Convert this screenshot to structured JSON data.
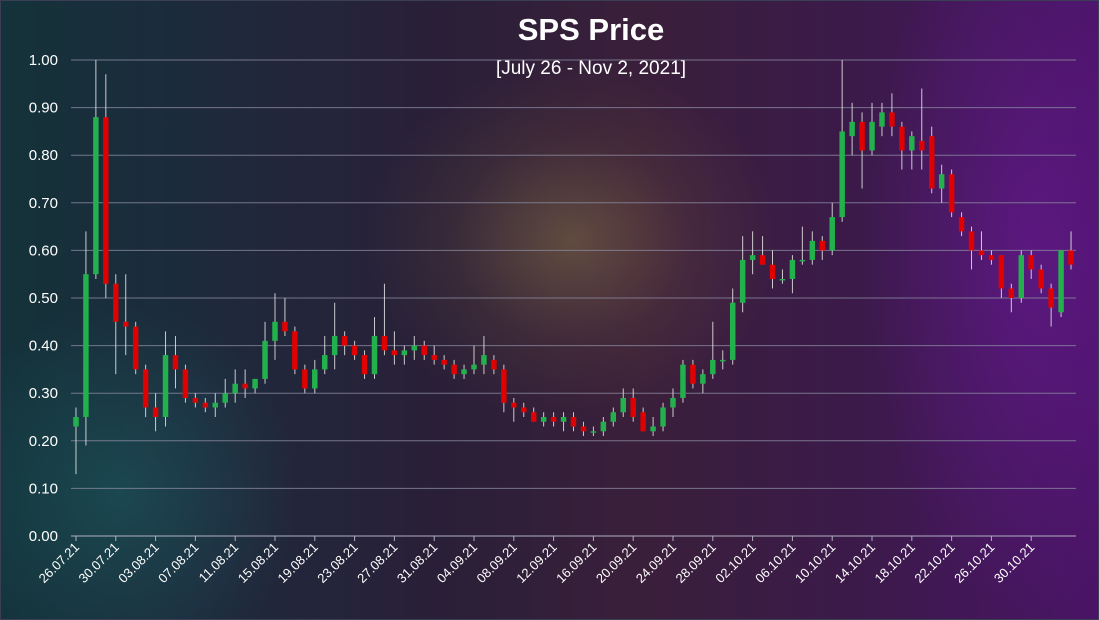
{
  "chart_data": {
    "type": "candlestick",
    "title": "SPS Price",
    "subtitle": "[July 26 - Nov 2, 2021]",
    "xlabel": "",
    "ylabel": "",
    "ylim": [
      0,
      1.0
    ],
    "grid": true,
    "legend": "none",
    "colors": {
      "up": "#22b14c",
      "down": "#e00000",
      "wick": "#e8e8e8",
      "grid": "#8a8aa0"
    },
    "y_ticks": [
      "0.00",
      "0.10",
      "0.20",
      "0.30",
      "0.40",
      "0.50",
      "0.60",
      "0.70",
      "0.80",
      "0.90",
      "1.00"
    ],
    "x_tick_labels": [
      "26.07.21",
      "30.07.21",
      "03.08.21",
      "07.08.21",
      "11.08.21",
      "15.08.21",
      "19.08.21",
      "23.08.21",
      "27.08.21",
      "31.08.21",
      "04.09.21",
      "08.09.21",
      "12.09.21",
      "16.09.21",
      "20.09.21",
      "24.09.21",
      "28.09.21",
      "02.10.21",
      "06.10.21",
      "10.10.21",
      "14.10.21",
      "18.10.21",
      "22.10.21",
      "26.10.21",
      "30.10.21"
    ],
    "candles": [
      {
        "d": "26.07.21",
        "o": 0.23,
        "h": 0.27,
        "l": 0.13,
        "c": 0.25
      },
      {
        "d": "27.07.21",
        "o": 0.25,
        "h": 0.64,
        "l": 0.19,
        "c": 0.55
      },
      {
        "d": "28.07.21",
        "o": 0.55,
        "h": 1.0,
        "l": 0.54,
        "c": 0.88
      },
      {
        "d": "29.07.21",
        "o": 0.88,
        "h": 0.97,
        "l": 0.5,
        "c": 0.53
      },
      {
        "d": "30.07.21",
        "o": 0.53,
        "h": 0.55,
        "l": 0.34,
        "c": 0.45
      },
      {
        "d": "31.07.21",
        "o": 0.45,
        "h": 0.55,
        "l": 0.38,
        "c": 0.44
      },
      {
        "d": "01.08.21",
        "o": 0.44,
        "h": 0.45,
        "l": 0.34,
        "c": 0.35
      },
      {
        "d": "02.08.21",
        "o": 0.35,
        "h": 0.36,
        "l": 0.25,
        "c": 0.27
      },
      {
        "d": "03.08.21",
        "o": 0.27,
        "h": 0.3,
        "l": 0.22,
        "c": 0.25
      },
      {
        "d": "04.08.21",
        "o": 0.25,
        "h": 0.43,
        "l": 0.23,
        "c": 0.38
      },
      {
        "d": "05.08.21",
        "o": 0.38,
        "h": 0.42,
        "l": 0.31,
        "c": 0.35
      },
      {
        "d": "06.08.21",
        "o": 0.35,
        "h": 0.36,
        "l": 0.28,
        "c": 0.29
      },
      {
        "d": "07.08.21",
        "o": 0.29,
        "h": 0.3,
        "l": 0.27,
        "c": 0.28
      },
      {
        "d": "08.08.21",
        "o": 0.28,
        "h": 0.29,
        "l": 0.26,
        "c": 0.27
      },
      {
        "d": "09.08.21",
        "o": 0.27,
        "h": 0.3,
        "l": 0.25,
        "c": 0.28
      },
      {
        "d": "10.08.21",
        "o": 0.28,
        "h": 0.33,
        "l": 0.27,
        "c": 0.3
      },
      {
        "d": "11.08.21",
        "o": 0.3,
        "h": 0.35,
        "l": 0.28,
        "c": 0.32
      },
      {
        "d": "12.08.21",
        "o": 0.32,
        "h": 0.35,
        "l": 0.29,
        "c": 0.31
      },
      {
        "d": "13.08.21",
        "o": 0.31,
        "h": 0.33,
        "l": 0.3,
        "c": 0.33
      },
      {
        "d": "14.08.21",
        "o": 0.33,
        "h": 0.45,
        "l": 0.32,
        "c": 0.41
      },
      {
        "d": "15.08.21",
        "o": 0.41,
        "h": 0.51,
        "l": 0.37,
        "c": 0.45
      },
      {
        "d": "16.08.21",
        "o": 0.45,
        "h": 0.5,
        "l": 0.42,
        "c": 0.43
      },
      {
        "d": "17.08.21",
        "o": 0.43,
        "h": 0.44,
        "l": 0.34,
        "c": 0.35
      },
      {
        "d": "18.08.21",
        "o": 0.35,
        "h": 0.36,
        "l": 0.3,
        "c": 0.31
      },
      {
        "d": "19.08.21",
        "o": 0.31,
        "h": 0.37,
        "l": 0.3,
        "c": 0.35
      },
      {
        "d": "20.08.21",
        "o": 0.35,
        "h": 0.42,
        "l": 0.34,
        "c": 0.38
      },
      {
        "d": "21.08.21",
        "o": 0.38,
        "h": 0.49,
        "l": 0.35,
        "c": 0.42
      },
      {
        "d": "22.08.21",
        "o": 0.42,
        "h": 0.43,
        "l": 0.38,
        "c": 0.4
      },
      {
        "d": "23.08.21",
        "o": 0.4,
        "h": 0.41,
        "l": 0.37,
        "c": 0.38
      },
      {
        "d": "24.08.21",
        "o": 0.38,
        "h": 0.39,
        "l": 0.33,
        "c": 0.34
      },
      {
        "d": "25.08.21",
        "o": 0.34,
        "h": 0.46,
        "l": 0.33,
        "c": 0.42
      },
      {
        "d": "26.08.21",
        "o": 0.42,
        "h": 0.53,
        "l": 0.38,
        "c": 0.39
      },
      {
        "d": "27.08.21",
        "o": 0.39,
        "h": 0.43,
        "l": 0.36,
        "c": 0.38
      },
      {
        "d": "28.08.21",
        "o": 0.38,
        "h": 0.4,
        "l": 0.36,
        "c": 0.39
      },
      {
        "d": "29.08.21",
        "o": 0.39,
        "h": 0.42,
        "l": 0.37,
        "c": 0.4
      },
      {
        "d": "30.08.21",
        "o": 0.4,
        "h": 0.41,
        "l": 0.37,
        "c": 0.38
      },
      {
        "d": "31.08.21",
        "o": 0.38,
        "h": 0.4,
        "l": 0.36,
        "c": 0.37
      },
      {
        "d": "01.09.21",
        "o": 0.37,
        "h": 0.38,
        "l": 0.35,
        "c": 0.36
      },
      {
        "d": "02.09.21",
        "o": 0.36,
        "h": 0.37,
        "l": 0.33,
        "c": 0.34
      },
      {
        "d": "03.09.21",
        "o": 0.34,
        "h": 0.36,
        "l": 0.33,
        "c": 0.35
      },
      {
        "d": "04.09.21",
        "o": 0.35,
        "h": 0.4,
        "l": 0.34,
        "c": 0.36
      },
      {
        "d": "05.09.21",
        "o": 0.36,
        "h": 0.42,
        "l": 0.34,
        "c": 0.38
      },
      {
        "d": "06.09.21",
        "o": 0.37,
        "h": 0.38,
        "l": 0.34,
        "c": 0.35
      },
      {
        "d": "07.09.21",
        "o": 0.35,
        "h": 0.36,
        "l": 0.26,
        "c": 0.28
      },
      {
        "d": "08.09.21",
        "o": 0.28,
        "h": 0.29,
        "l": 0.24,
        "c": 0.27
      },
      {
        "d": "09.09.21",
        "o": 0.27,
        "h": 0.28,
        "l": 0.25,
        "c": 0.26
      },
      {
        "d": "10.09.21",
        "o": 0.26,
        "h": 0.27,
        "l": 0.24,
        "c": 0.24
      },
      {
        "d": "11.09.21",
        "o": 0.24,
        "h": 0.26,
        "l": 0.23,
        "c": 0.25
      },
      {
        "d": "12.09.21",
        "o": 0.25,
        "h": 0.26,
        "l": 0.23,
        "c": 0.24
      },
      {
        "d": "13.09.21",
        "o": 0.24,
        "h": 0.26,
        "l": 0.22,
        "c": 0.25
      },
      {
        "d": "14.09.21",
        "o": 0.25,
        "h": 0.26,
        "l": 0.22,
        "c": 0.23
      },
      {
        "d": "15.09.21",
        "o": 0.23,
        "h": 0.24,
        "l": 0.21,
        "c": 0.22
      },
      {
        "d": "16.09.21",
        "o": 0.22,
        "h": 0.23,
        "l": 0.21,
        "c": 0.22
      },
      {
        "d": "17.09.21",
        "o": 0.22,
        "h": 0.25,
        "l": 0.21,
        "c": 0.24
      },
      {
        "d": "18.09.21",
        "o": 0.24,
        "h": 0.27,
        "l": 0.23,
        "c": 0.26
      },
      {
        "d": "19.09.21",
        "o": 0.26,
        "h": 0.31,
        "l": 0.25,
        "c": 0.29
      },
      {
        "d": "20.09.21",
        "o": 0.29,
        "h": 0.31,
        "l": 0.24,
        "c": 0.25
      },
      {
        "d": "21.09.21",
        "o": 0.26,
        "h": 0.27,
        "l": 0.22,
        "c": 0.22
      },
      {
        "d": "22.09.21",
        "o": 0.22,
        "h": 0.25,
        "l": 0.21,
        "c": 0.23
      },
      {
        "d": "23.09.21",
        "o": 0.23,
        "h": 0.28,
        "l": 0.22,
        "c": 0.27
      },
      {
        "d": "24.09.21",
        "o": 0.27,
        "h": 0.31,
        "l": 0.25,
        "c": 0.29
      },
      {
        "d": "25.09.21",
        "o": 0.29,
        "h": 0.37,
        "l": 0.28,
        "c": 0.36
      },
      {
        "d": "26.09.21",
        "o": 0.36,
        "h": 0.37,
        "l": 0.31,
        "c": 0.32
      },
      {
        "d": "27.09.21",
        "o": 0.32,
        "h": 0.35,
        "l": 0.3,
        "c": 0.34
      },
      {
        "d": "28.09.21",
        "o": 0.34,
        "h": 0.45,
        "l": 0.33,
        "c": 0.37
      },
      {
        "d": "29.09.21",
        "o": 0.37,
        "h": 0.39,
        "l": 0.35,
        "c": 0.37
      },
      {
        "d": "30.09.21",
        "o": 0.37,
        "h": 0.52,
        "l": 0.36,
        "c": 0.49
      },
      {
        "d": "01.10.21",
        "o": 0.49,
        "h": 0.63,
        "l": 0.47,
        "c": 0.58
      },
      {
        "d": "02.10.21",
        "o": 0.58,
        "h": 0.64,
        "l": 0.55,
        "c": 0.59
      },
      {
        "d": "03.10.21",
        "o": 0.59,
        "h": 0.63,
        "l": 0.57,
        "c": 0.57
      },
      {
        "d": "04.10.21",
        "o": 0.57,
        "h": 0.6,
        "l": 0.52,
        "c": 0.54
      },
      {
        "d": "05.10.21",
        "o": 0.54,
        "h": 0.56,
        "l": 0.53,
        "c": 0.54
      },
      {
        "d": "06.10.21",
        "o": 0.54,
        "h": 0.59,
        "l": 0.51,
        "c": 0.58
      },
      {
        "d": "07.10.21",
        "o": 0.58,
        "h": 0.65,
        "l": 0.57,
        "c": 0.58
      },
      {
        "d": "08.10.21",
        "o": 0.58,
        "h": 0.64,
        "l": 0.57,
        "c": 0.62
      },
      {
        "d": "09.10.21",
        "o": 0.62,
        "h": 0.63,
        "l": 0.58,
        "c": 0.6
      },
      {
        "d": "10.10.21",
        "o": 0.6,
        "h": 0.7,
        "l": 0.59,
        "c": 0.67
      },
      {
        "d": "11.10.21",
        "o": 0.67,
        "h": 1.0,
        "l": 0.66,
        "c": 0.85
      },
      {
        "d": "12.10.21",
        "o": 0.84,
        "h": 0.91,
        "l": 0.8,
        "c": 0.87
      },
      {
        "d": "13.10.21",
        "o": 0.87,
        "h": 0.89,
        "l": 0.73,
        "c": 0.81
      },
      {
        "d": "14.10.21",
        "o": 0.81,
        "h": 0.91,
        "l": 0.8,
        "c": 0.87
      },
      {
        "d": "15.10.21",
        "o": 0.86,
        "h": 0.91,
        "l": 0.84,
        "c": 0.89
      },
      {
        "d": "16.10.21",
        "o": 0.89,
        "h": 0.93,
        "l": 0.84,
        "c": 0.86
      },
      {
        "d": "17.10.21",
        "o": 0.86,
        "h": 0.87,
        "l": 0.77,
        "c": 0.81
      },
      {
        "d": "18.10.21",
        "o": 0.81,
        "h": 0.85,
        "l": 0.77,
        "c": 0.84
      },
      {
        "d": "19.10.21",
        "o": 0.83,
        "h": 0.94,
        "l": 0.77,
        "c": 0.81
      },
      {
        "d": "20.10.21",
        "o": 0.84,
        "h": 0.86,
        "l": 0.72,
        "c": 0.73
      },
      {
        "d": "21.10.21",
        "o": 0.73,
        "h": 0.78,
        "l": 0.7,
        "c": 0.76
      },
      {
        "d": "22.10.21",
        "o": 0.76,
        "h": 0.77,
        "l": 0.67,
        "c": 0.68
      },
      {
        "d": "23.10.21",
        "o": 0.67,
        "h": 0.68,
        "l": 0.63,
        "c": 0.64
      },
      {
        "d": "24.10.21",
        "o": 0.64,
        "h": 0.65,
        "l": 0.56,
        "c": 0.6
      },
      {
        "d": "25.10.21",
        "o": 0.6,
        "h": 0.64,
        "l": 0.58,
        "c": 0.59
      },
      {
        "d": "26.10.21",
        "o": 0.59,
        "h": 0.6,
        "l": 0.57,
        "c": 0.58
      },
      {
        "d": "27.10.21",
        "o": 0.59,
        "h": 0.59,
        "l": 0.5,
        "c": 0.52
      },
      {
        "d": "28.10.21",
        "o": 0.52,
        "h": 0.53,
        "l": 0.47,
        "c": 0.5
      },
      {
        "d": "29.10.21",
        "o": 0.5,
        "h": 0.6,
        "l": 0.49,
        "c": 0.59
      },
      {
        "d": "30.10.21",
        "o": 0.59,
        "h": 0.6,
        "l": 0.54,
        "c": 0.56
      },
      {
        "d": "31.10.21",
        "o": 0.56,
        "h": 0.57,
        "l": 0.51,
        "c": 0.52
      },
      {
        "d": "01.11.21",
        "o": 0.52,
        "h": 0.53,
        "l": 0.44,
        "c": 0.48
      },
      {
        "d": "02.11.21",
        "o": 0.47,
        "h": 0.6,
        "l": 0.46,
        "c": 0.6
      },
      {
        "d": "03.11.21",
        "o": 0.6,
        "h": 0.64,
        "l": 0.56,
        "c": 0.57
      }
    ]
  }
}
